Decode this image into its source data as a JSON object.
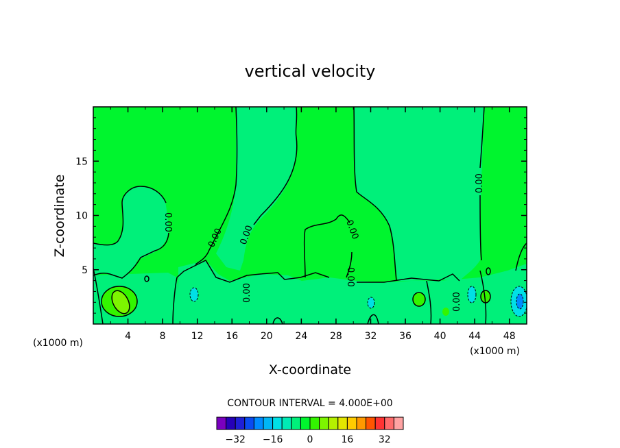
{
  "chart_data": {
    "type": "heatmap",
    "title": "vertical velocity",
    "xlabel": "X-coordinate",
    "ylabel": "Z-coordinate",
    "x_unit": "(x1000 m)",
    "xlim": [
      0,
      50
    ],
    "ylim": [
      0,
      20
    ],
    "x_ticks": [
      4,
      8,
      12,
      16,
      20,
      24,
      28,
      32,
      36,
      40,
      44,
      48
    ],
    "y_ticks": [
      5,
      10,
      15
    ],
    "contour_interval_text": "CONTOUR INTERVAL = 4.000E+00",
    "contour_labels": [
      "0.00",
      "0.00",
      "0.00",
      "0.00",
      "0.00",
      "0.00",
      "0.00",
      "0.00",
      "0.00"
    ],
    "colorbar": {
      "levels": [
        -36,
        -32,
        -28,
        -24,
        -20,
        -16,
        -12,
        -8,
        -4,
        0,
        4,
        8,
        12,
        16,
        20,
        24,
        28,
        32,
        36
      ],
      "tick_values": [
        -32,
        -16,
        0,
        16,
        32
      ],
      "colors": [
        "#7a00bf",
        "#2600b8",
        "#1f1fd6",
        "#0a4bf0",
        "#008cff",
        "#00b6f5",
        "#00e0e6",
        "#00ebb5",
        "#00f07a",
        "#00f52e",
        "#33f500",
        "#7df500",
        "#b5f000",
        "#e3e600",
        "#ffcc00",
        "#ff9900",
        "#ff5500",
        "#ff3333",
        "#ff6b6b",
        "#ffa3a3"
      ]
    },
    "field_colors": {
      "zero_band": "#00f52e",
      "slight_negative": "#00f07a",
      "slight_positive": "#33f500",
      "positive": "#7df500",
      "negative_cyan": "#00e0e6",
      "negative_blue": "#008cff"
    }
  }
}
